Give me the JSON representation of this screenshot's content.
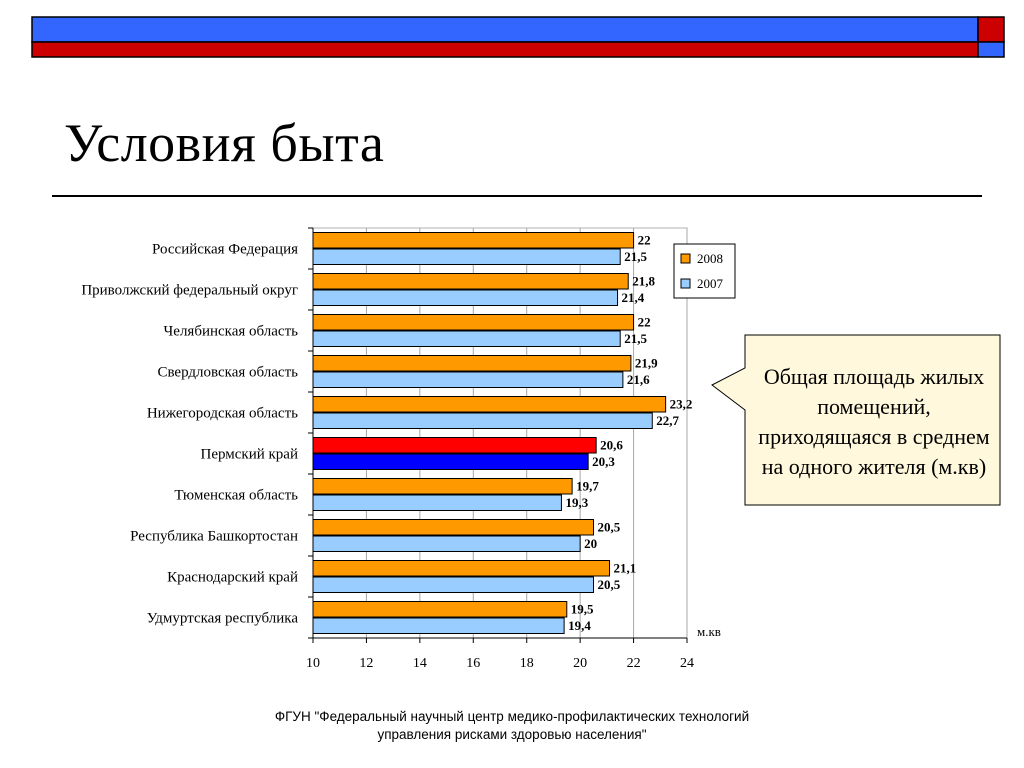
{
  "title": "Условия быта",
  "colors": {
    "bar_2008": "#FF9900",
    "bar_2007": "#99CCFF",
    "highlight_2008": "#FF0000",
    "highlight_2007": "#0000FF",
    "top_blue": "#3366FF",
    "top_red": "#CC0000",
    "callout_fill": "#FFF8DC"
  },
  "callout": {
    "text": "Общая площадь жилых помещений, приходящаяся в среднем на одного жителя (м.кв)"
  },
  "footer": {
    "line1": "ФГУН \"Федеральный научный центр медико-профилактических технологий",
    "line2": "управления рисками здоровью населения\""
  },
  "chart_data": {
    "type": "bar",
    "orientation": "horizontal",
    "categories": [
      "Российская Федерация",
      "Приволжский федеральный округ",
      "Челябинская область",
      "Свердловская область",
      "Нижегородская область",
      "Пермский край",
      "Тюменская область",
      "Республика Башкортостан",
      "Краснодарский край",
      "Удмуртская республика"
    ],
    "series": [
      {
        "name": "2008",
        "values": [
          22,
          21.8,
          22,
          21.9,
          23.2,
          20.6,
          19.7,
          20.5,
          21.1,
          19.5
        ],
        "labels": [
          "22",
          "21,8",
          "22",
          "21,9",
          "23,2",
          "20,6",
          "19,7",
          "20,5",
          "21,1",
          "19,5"
        ]
      },
      {
        "name": "2007",
        "values": [
          21.5,
          21.4,
          21.5,
          21.6,
          22.7,
          20.3,
          19.3,
          20,
          20.5,
          19.4
        ],
        "labels": [
          "21,5",
          "21,4",
          "21,5",
          "21,6",
          "22,7",
          "20,3",
          "19,3",
          "20",
          "20,5",
          "19,4"
        ]
      }
    ],
    "highlight_category": "Пермский край",
    "xlim": [
      10,
      24
    ],
    "xticks": [
      "10",
      "12",
      "14",
      "16",
      "18",
      "20",
      "22",
      "24"
    ],
    "unit_label": "м.кв",
    "grid": true,
    "legend_position": "top-right"
  }
}
